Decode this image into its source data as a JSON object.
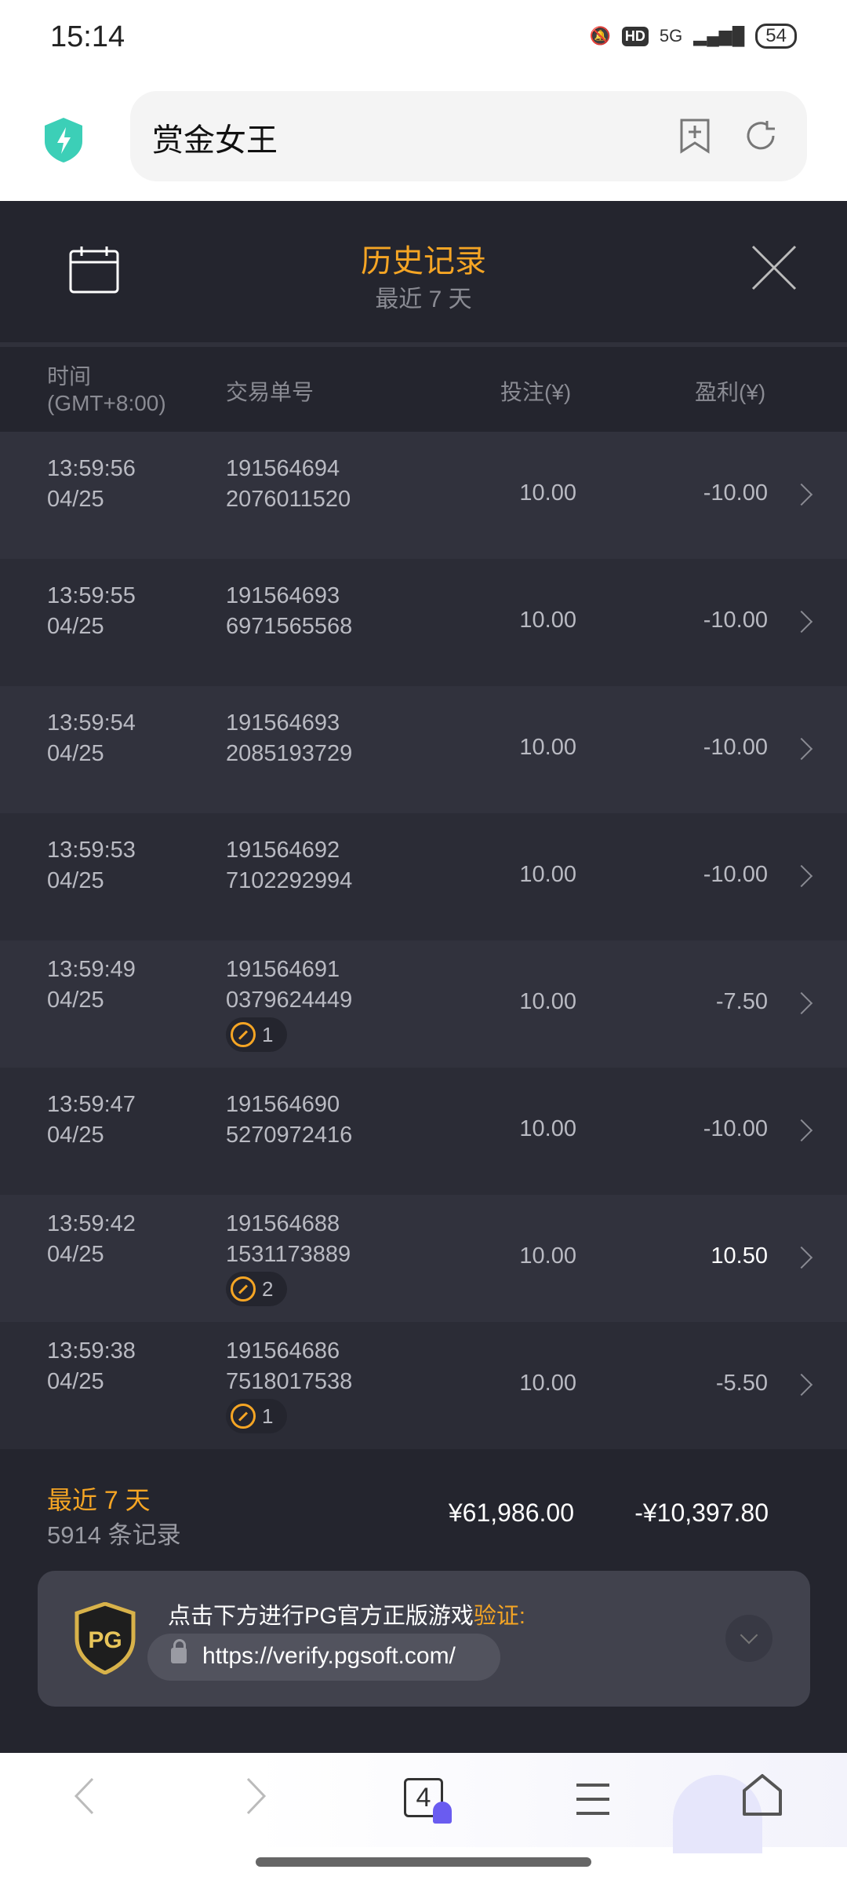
{
  "status_bar": {
    "time": "15:14",
    "network": "5G",
    "hd": "HD",
    "battery": "54"
  },
  "browser": {
    "url_title": "赏金女王",
    "tab_count": "4"
  },
  "header": {
    "title": "历史记录",
    "subtitle": "最近 7 天"
  },
  "columns": {
    "time": "时间",
    "timezone": "(GMT+8:00)",
    "txn": "交易单号",
    "bet": "投注(¥)",
    "profit": "盈利(¥)"
  },
  "rows": [
    {
      "time": "13:59:56",
      "date": "04/25",
      "txn1": "191564694",
      "txn2": "2076011520",
      "bet": "10.00",
      "profit": "-10.00"
    },
    {
      "time": "13:59:55",
      "date": "04/25",
      "txn1": "191564693",
      "txn2": "6971565568",
      "bet": "10.00",
      "profit": "-10.00"
    },
    {
      "time": "13:59:54",
      "date": "04/25",
      "txn1": "191564693",
      "txn2": "2085193729",
      "bet": "10.00",
      "profit": "-10.00"
    },
    {
      "time": "13:59:53",
      "date": "04/25",
      "txn1": "191564692",
      "txn2": "7102292994",
      "bet": "10.00",
      "profit": "-10.00"
    },
    {
      "time": "13:59:49",
      "date": "04/25",
      "txn1": "191564691",
      "txn2": "0379624449",
      "bet": "10.00",
      "profit": "-7.50",
      "badge": "1"
    },
    {
      "time": "13:59:47",
      "date": "04/25",
      "txn1": "191564690",
      "txn2": "5270972416",
      "bet": "10.00",
      "profit": "-10.00"
    },
    {
      "time": "13:59:42",
      "date": "04/25",
      "txn1": "191564688",
      "txn2": "1531173889",
      "bet": "10.00",
      "profit": "10.50",
      "badge": "2"
    },
    {
      "time": "13:59:38",
      "date": "04/25",
      "txn1": "191564686",
      "txn2": "7518017538",
      "bet": "10.00",
      "profit": "-5.50",
      "badge": "1"
    }
  ],
  "footer": {
    "period": "最近 7 天",
    "count": "5914 条记录",
    "total_bet": "¥61,986.00",
    "total_profit": "-¥10,397.80"
  },
  "verify": {
    "message": "点击下方进行PG官方正版游戏",
    "highlight": "验证",
    "colon": ":",
    "url": "https://verify.pgsoft.com/",
    "logo_text": "PG"
  },
  "colors": {
    "accent": "#f5a524",
    "bg": "#24252e"
  }
}
